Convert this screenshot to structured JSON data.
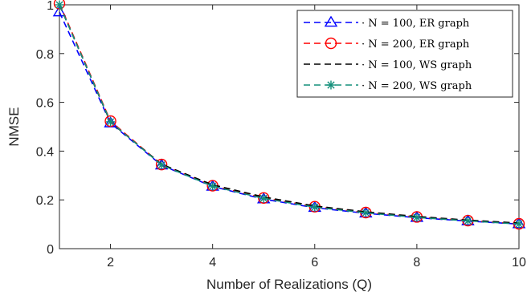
{
  "chart_data": {
    "type": "line",
    "xlabel": "Number of Realizations (Q)",
    "ylabel": "NMSE",
    "xlim": [
      1,
      10
    ],
    "ylim": [
      0,
      1
    ],
    "xticks": [
      "2",
      "4",
      "6",
      "8",
      "10"
    ],
    "yticks": [
      "0",
      "0.2",
      "0.4",
      "0.6",
      "0.8",
      "1"
    ],
    "x": [
      1,
      2,
      3,
      4,
      5,
      6,
      7,
      8,
      9,
      10
    ],
    "grid": false,
    "legend_position": "top-right",
    "series": [
      {
        "name": "N = 100, ER graph",
        "legend_label": "· N = 100, ER graph",
        "color": "#0000ff",
        "marker": "triangle",
        "values": [
          0.97,
          0.515,
          0.342,
          0.255,
          0.203,
          0.168,
          0.145,
          0.127,
          0.113,
          0.101
        ]
      },
      {
        "name": "N = 200, ER graph",
        "legend_label": "· N = 200, ER graph",
        "color": "#ff0000",
        "marker": "circle",
        "values": [
          1.005,
          0.523,
          0.345,
          0.258,
          0.208,
          0.172,
          0.148,
          0.13,
          0.115,
          0.102
        ]
      },
      {
        "name": "N = 100, WS graph",
        "legend_label": "· N = 100, WS graph",
        "color": "#000000",
        "marker": "none",
        "values": [
          1.0,
          0.518,
          0.346,
          0.262,
          0.212,
          0.175,
          0.151,
          0.132,
          0.117,
          0.105
        ]
      },
      {
        "name": "N = 200, WS graph",
        "legend_label": "· N = 200, WS graph",
        "color": "#138f7a",
        "marker": "asterisk",
        "values": [
          1.0,
          0.52,
          0.343,
          0.256,
          0.206,
          0.17,
          0.147,
          0.128,
          0.114,
          0.101
        ]
      }
    ]
  }
}
